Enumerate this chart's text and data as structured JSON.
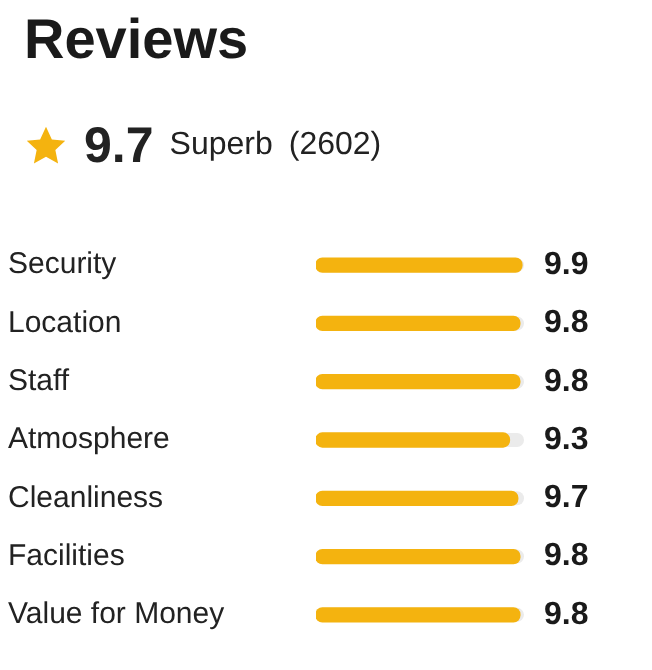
{
  "chart_data": {
    "type": "bar",
    "title": "Reviews",
    "annotations": [
      "9.7",
      "Superb",
      "(2602)"
    ],
    "orientation": "horizontal",
    "categories": [
      "Security",
      "Location",
      "Staff",
      "Atmosphere",
      "Cleanliness",
      "Facilities",
      "Value for Money"
    ],
    "values": [
      9.9,
      9.8,
      9.8,
      9.3,
      9.7,
      9.8,
      9.8
    ],
    "color": "#f4b30f",
    "xlim": [
      0,
      10
    ],
    "data_labels": true,
    "tick_labels": "y"
  }
}
